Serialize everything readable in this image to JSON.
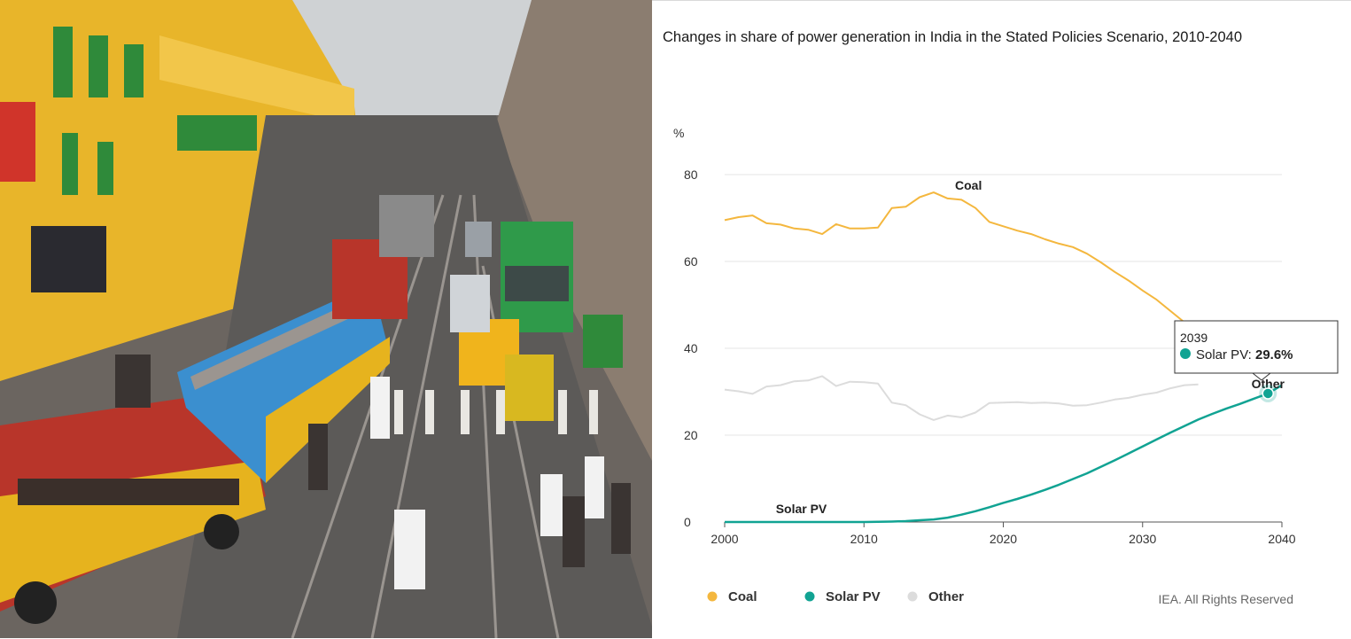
{
  "chart_data": {
    "type": "line",
    "title": "Changes in share of power generation in India in the Stated Policies Scenario, 2010-2040",
    "ylabel": "%",
    "xlabel": "",
    "xlim": [
      2000,
      2040
    ],
    "ylim": [
      0,
      80
    ],
    "x_ticks": [
      2000,
      2010,
      2020,
      2030,
      2040
    ],
    "y_ticks": [
      0,
      20,
      40,
      60,
      80
    ],
    "grid": "horizontal",
    "legend_placement": "bottom-left",
    "series": [
      {
        "name": "Coal",
        "color": "#f4b73e",
        "x": [
          2000,
          2001,
          2002,
          2003,
          2004,
          2005,
          2006,
          2007,
          2008,
          2009,
          2010,
          2011,
          2012,
          2013,
          2014,
          2015,
          2016,
          2017,
          2018,
          2019,
          2020,
          2021,
          2022,
          2023,
          2024,
          2025,
          2026,
          2027,
          2028,
          2029,
          2030,
          2031,
          2032,
          2033,
          2034
        ],
        "values": [
          69.5,
          70.2,
          70.6,
          68.8,
          68.5,
          67.6,
          67.3,
          66.3,
          68.6,
          67.6,
          67.6,
          67.8,
          72.3,
          72.6,
          74.8,
          75.9,
          74.5,
          74.2,
          72.3,
          69.1,
          68.1,
          67.1,
          66.3,
          65.1,
          64.1,
          63.3,
          61.8,
          59.8,
          57.6,
          55.6,
          53.3,
          51.2,
          48.6,
          46.0,
          43.3
        ]
      },
      {
        "name": "Solar PV",
        "color": "#11a393",
        "x": [
          2000,
          2002,
          2004,
          2006,
          2008,
          2010,
          2011,
          2012,
          2013,
          2014,
          2015,
          2016,
          2017,
          2018,
          2019,
          2020,
          2021,
          2022,
          2023,
          2024,
          2025,
          2026,
          2027,
          2028,
          2029,
          2030,
          2031,
          2032,
          2033,
          2034,
          2035,
          2036,
          2037,
          2038,
          2039,
          2040
        ],
        "values": [
          0,
          0,
          0,
          0,
          0,
          0,
          0.05,
          0.1,
          0.2,
          0.4,
          0.6,
          1.0,
          1.7,
          2.5,
          3.4,
          4.4,
          5.3,
          6.3,
          7.4,
          8.6,
          9.9,
          11.2,
          12.7,
          14.2,
          15.8,
          17.4,
          19.0,
          20.6,
          22.1,
          23.6,
          24.9,
          26.1,
          27.2,
          28.4,
          29.6,
          31.5
        ]
      },
      {
        "name": "Other",
        "color": "#dcdcdc",
        "x": [
          2000,
          2001,
          2002,
          2003,
          2004,
          2005,
          2006,
          2007,
          2008,
          2009,
          2010,
          2011,
          2012,
          2013,
          2014,
          2015,
          2016,
          2017,
          2018,
          2019,
          2020,
          2021,
          2022,
          2023,
          2024,
          2025,
          2026,
          2027,
          2028,
          2029,
          2030,
          2031,
          2032,
          2033,
          2034
        ],
        "values": [
          30.5,
          30.1,
          29.5,
          31.2,
          31.5,
          32.4,
          32.6,
          33.6,
          31.3,
          32.3,
          32.2,
          31.9,
          27.5,
          26.9,
          24.8,
          23.5,
          24.5,
          24.1,
          25.2,
          27.4,
          27.5,
          27.6,
          27.4,
          27.5,
          27.3,
          26.8,
          26.9,
          27.5,
          28.2,
          28.6,
          29.3,
          29.8,
          30.8,
          31.5,
          31.7
        ]
      }
    ],
    "series_labels": [
      {
        "text": "Coal",
        "x": 2017.5,
        "y": 76.5
      },
      {
        "text": "Solar PV",
        "x": 2005.5,
        "y": 2.0
      },
      {
        "text": "Other",
        "x": 2039.0,
        "y": 30.8
      }
    ],
    "tooltip": {
      "year": "2039",
      "series": "Solar PV",
      "label": "Solar PV: ",
      "value": "29.6%",
      "x": 2039,
      "y": 29.6
    },
    "credit": "IEA. All Rights Reserved"
  }
}
